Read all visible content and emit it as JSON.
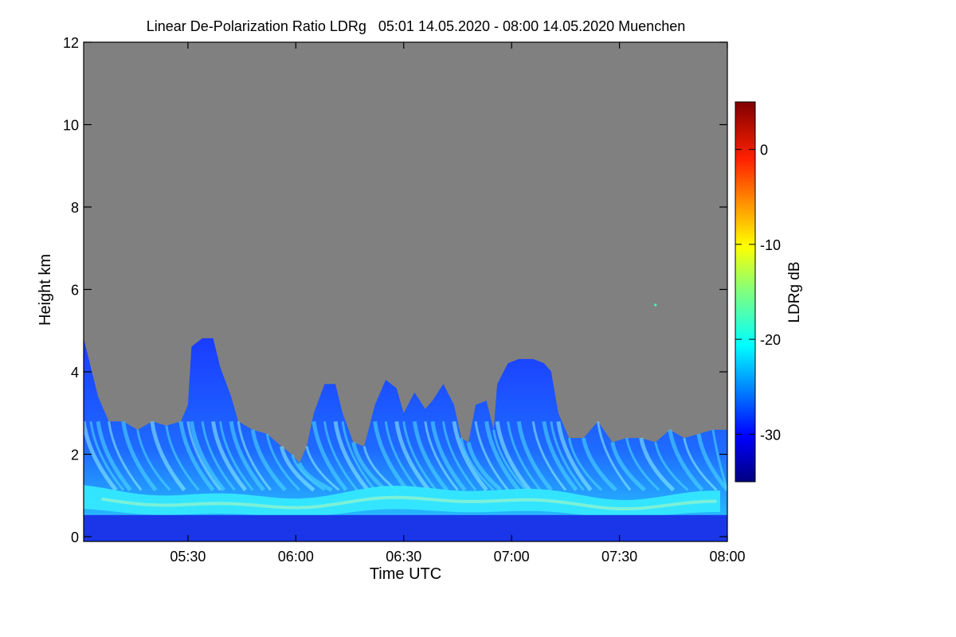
{
  "chart_data": {
    "type": "heatmap",
    "title": "Linear De-Polarization Ratio LDRg   05:01 14.05.2020 - 08:00 14.05.2020 Muenchen",
    "xlabel": "Time UTC",
    "ylabel": "Height km",
    "xlim_minutes_utc": [
      301,
      480
    ],
    "ylim_km": [
      0,
      12
    ],
    "x_ticks": [
      {
        "label": "05:30",
        "minute": 330
      },
      {
        "label": "06:00",
        "minute": 360
      },
      {
        "label": "06:30",
        "minute": 390
      },
      {
        "label": "07:00",
        "minute": 420
      },
      {
        "label": "07:30",
        "minute": 450
      },
      {
        "label": "08:00",
        "minute": 480
      }
    ],
    "y_ticks": [
      {
        "label": "0",
        "value": 0
      },
      {
        "label": "2",
        "value": 2
      },
      {
        "label": "4",
        "value": 4
      },
      {
        "label": "6",
        "value": 6
      },
      {
        "label": "8",
        "value": 8
      },
      {
        "label": "10",
        "value": 10
      },
      {
        "label": "12",
        "value": 12
      }
    ],
    "colorbar": {
      "label": "LDRg dB",
      "range": [
        -35,
        5
      ],
      "ticks": [
        {
          "label": "0",
          "value": 0
        },
        {
          "label": "-10",
          "value": -10
        },
        {
          "label": "-20",
          "value": -20
        },
        {
          "label": "-30",
          "value": -30
        }
      ],
      "colormap": "jet"
    },
    "background_color": "#808080",
    "grid": false,
    "cloud_top_profile_km": [
      [
        301,
        5.0
      ],
      [
        303,
        4.3
      ],
      [
        305,
        3.6
      ],
      [
        308,
        3.0
      ],
      [
        312,
        3.0
      ],
      [
        316,
        2.8
      ],
      [
        320,
        3.0
      ],
      [
        324,
        2.9
      ],
      [
        328,
        3.0
      ],
      [
        330,
        3.4
      ],
      [
        331,
        4.8
      ],
      [
        334,
        5.0
      ],
      [
        337,
        5.0
      ],
      [
        339,
        4.3
      ],
      [
        342,
        3.6
      ],
      [
        344,
        3.0
      ],
      [
        348,
        2.8
      ],
      [
        352,
        2.7
      ],
      [
        356,
        2.4
      ],
      [
        359,
        2.2
      ],
      [
        361,
        2.0
      ],
      [
        363,
        2.4
      ],
      [
        365,
        3.2
      ],
      [
        368,
        3.9
      ],
      [
        371,
        3.9
      ],
      [
        373,
        3.2
      ],
      [
        376,
        2.5
      ],
      [
        379,
        2.4
      ],
      [
        382,
        3.4
      ],
      [
        385,
        4.0
      ],
      [
        388,
        3.8
      ],
      [
        390,
        3.2
      ],
      [
        393,
        3.7
      ],
      [
        396,
        3.3
      ],
      [
        398,
        3.5
      ],
      [
        401,
        3.9
      ],
      [
        404,
        3.4
      ],
      [
        406,
        2.6
      ],
      [
        408,
        2.5
      ],
      [
        410,
        3.4
      ],
      [
        413,
        3.5
      ],
      [
        415,
        2.8
      ],
      [
        416,
        3.9
      ],
      [
        419,
        4.4
      ],
      [
        422,
        4.5
      ],
      [
        426,
        4.5
      ],
      [
        429,
        4.4
      ],
      [
        431,
        4.2
      ],
      [
        433,
        3.2
      ],
      [
        436,
        2.6
      ],
      [
        440,
        2.6
      ],
      [
        444,
        3.0
      ],
      [
        448,
        2.5
      ],
      [
        452,
        2.6
      ],
      [
        456,
        2.6
      ],
      [
        460,
        2.5
      ],
      [
        464,
        2.8
      ],
      [
        468,
        2.6
      ],
      [
        472,
        2.7
      ],
      [
        476,
        2.8
      ],
      [
        480,
        2.8
      ]
    ],
    "boundary_layer_band": {
      "height_km_range": [
        0.8,
        1.3
      ],
      "ldr_db": -20
    },
    "point_features": [
      {
        "minute": 460,
        "height_km": 5.8,
        "ldr_db": -18
      }
    ]
  }
}
